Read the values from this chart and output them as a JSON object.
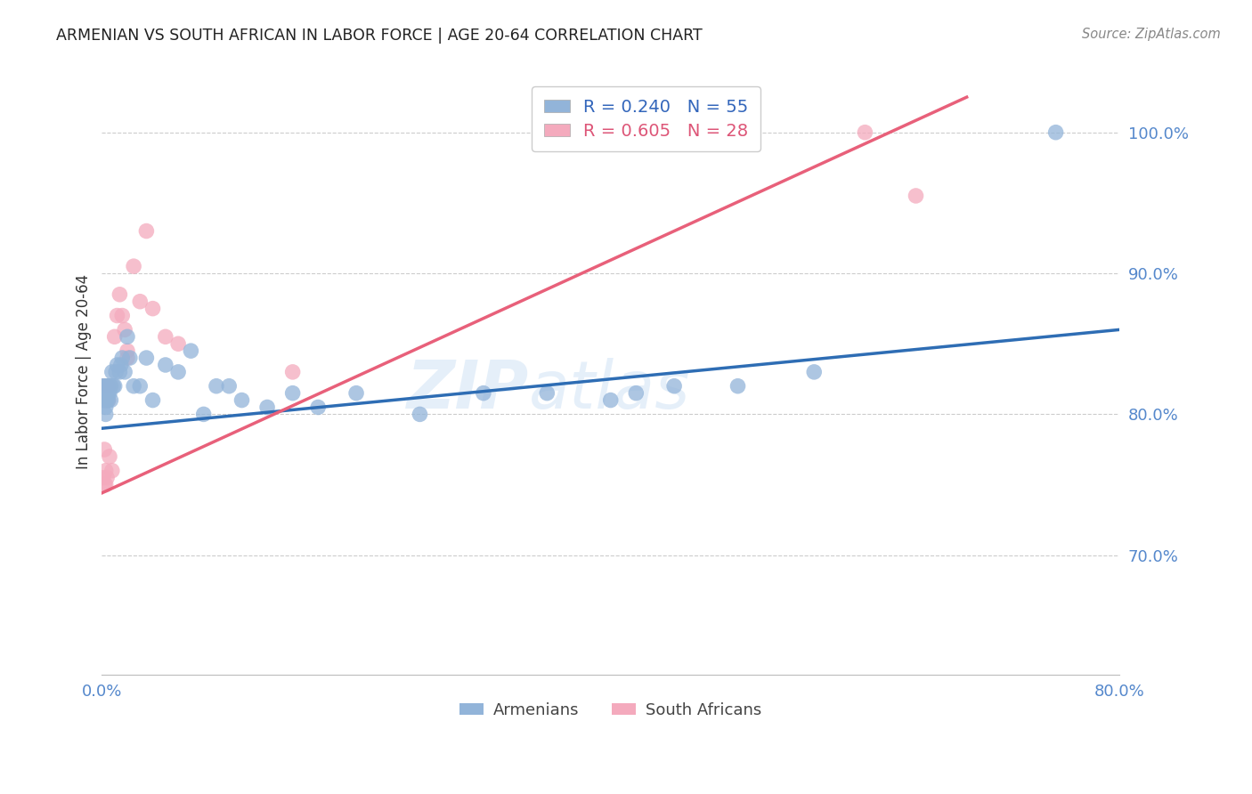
{
  "title": "ARMENIAN VS SOUTH AFRICAN IN LABOR FORCE | AGE 20-64 CORRELATION CHART",
  "source": "Source: ZipAtlas.com",
  "ylabel": "In Labor Force | Age 20-64",
  "watermark_zip": "ZIP",
  "watermark_atlas": "atlas",
  "legend_blue_label": "Armenians",
  "legend_pink_label": "South Africans",
  "legend_blue_text": "R = 0.240   N = 55",
  "legend_pink_text": "R = 0.605   N = 28",
  "blue_color": "#92B4D9",
  "pink_color": "#F4AABD",
  "blue_line_color": "#2E6DB4",
  "pink_line_color": "#E8607A",
  "xlim": [
    0.0,
    0.8
  ],
  "ylim": [
    0.615,
    1.045
  ],
  "yticks": [
    0.7,
    0.8,
    0.9,
    1.0
  ],
  "ytick_labels": [
    "70.0%",
    "80.0%",
    "90.0%",
    "100.0%"
  ],
  "xtick_positions": [
    0.0,
    0.8
  ],
  "xtick_labels": [
    "0.0%",
    "80.0%"
  ],
  "blue_x": [
    0.001,
    0.001,
    0.001,
    0.002,
    0.002,
    0.002,
    0.003,
    0.003,
    0.003,
    0.003,
    0.004,
    0.004,
    0.004,
    0.005,
    0.005,
    0.005,
    0.006,
    0.006,
    0.007,
    0.007,
    0.008,
    0.009,
    0.01,
    0.011,
    0.012,
    0.014,
    0.015,
    0.016,
    0.018,
    0.02,
    0.022,
    0.025,
    0.03,
    0.035,
    0.04,
    0.05,
    0.06,
    0.07,
    0.08,
    0.09,
    0.1,
    0.11,
    0.13,
    0.15,
    0.17,
    0.2,
    0.25,
    0.3,
    0.35,
    0.4,
    0.42,
    0.45,
    0.5,
    0.56,
    0.75
  ],
  "blue_y": [
    0.815,
    0.81,
    0.82,
    0.82,
    0.81,
    0.815,
    0.81,
    0.815,
    0.805,
    0.8,
    0.81,
    0.815,
    0.82,
    0.81,
    0.815,
    0.82,
    0.815,
    0.82,
    0.81,
    0.82,
    0.83,
    0.82,
    0.82,
    0.83,
    0.835,
    0.83,
    0.835,
    0.84,
    0.83,
    0.855,
    0.84,
    0.82,
    0.82,
    0.84,
    0.81,
    0.835,
    0.83,
    0.845,
    0.8,
    0.82,
    0.82,
    0.81,
    0.805,
    0.815,
    0.805,
    0.815,
    0.8,
    0.815,
    0.815,
    0.81,
    0.815,
    0.82,
    0.82,
    0.83,
    1.0
  ],
  "pink_x": [
    0.001,
    0.001,
    0.002,
    0.002,
    0.003,
    0.003,
    0.004,
    0.005,
    0.005,
    0.006,
    0.007,
    0.008,
    0.01,
    0.012,
    0.014,
    0.016,
    0.018,
    0.02,
    0.025,
    0.03,
    0.035,
    0.04,
    0.05,
    0.06,
    0.6,
    0.64,
    0.02,
    0.15
  ],
  "pink_y": [
    0.82,
    0.755,
    0.775,
    0.75,
    0.76,
    0.75,
    0.755,
    0.82,
    0.81,
    0.77,
    0.82,
    0.76,
    0.855,
    0.87,
    0.885,
    0.87,
    0.86,
    0.84,
    0.905,
    0.88,
    0.93,
    0.875,
    0.855,
    0.85,
    1.0,
    0.955,
    0.845,
    0.83
  ],
  "blue_trend_x": [
    0.0,
    0.8
  ],
  "blue_trend_y": [
    0.79,
    0.86
  ],
  "pink_trend_x": [
    -0.01,
    0.68
  ],
  "pink_trend_y": [
    0.74,
    1.025
  ],
  "background_color": "#FFFFFF",
  "grid_color": "#CCCCCC",
  "tick_color": "#5588CC",
  "title_color": "#222222",
  "legend_text_blue": "#3366BB",
  "legend_text_pink": "#DD5577"
}
